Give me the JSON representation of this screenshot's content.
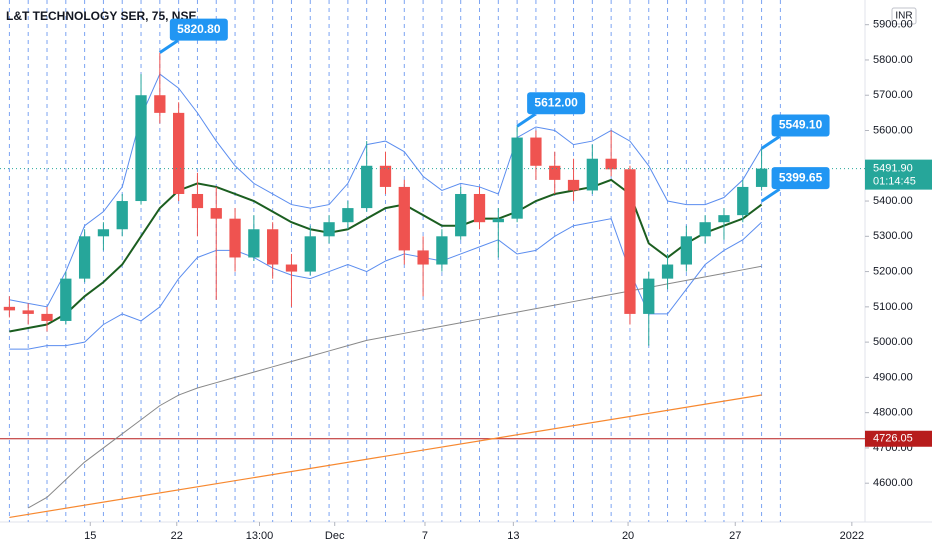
{
  "chart_data": {
    "type": "candlestick",
    "title": "L&T TECHNOLOGY SER, 75, NSE",
    "currency": "INR",
    "x": [
      0,
      1,
      2,
      3,
      4,
      5,
      6,
      7,
      8,
      9,
      10,
      11,
      12,
      13,
      14,
      15,
      16,
      17,
      18,
      19,
      20,
      21,
      22,
      23,
      24,
      25,
      26,
      27,
      28,
      29,
      30,
      31,
      32,
      33,
      34,
      35,
      36,
      37,
      38,
      39,
      40
    ],
    "open": [
      5100,
      5090,
      5080,
      5060,
      5180,
      5300,
      5320,
      5400,
      5700,
      5650,
      5420,
      5380,
      5350,
      5240,
      5320,
      5220,
      5200,
      5300,
      5340,
      5380,
      5500,
      5440,
      5260,
      5220,
      5300,
      5420,
      5340,
      5350,
      5580,
      5500,
      5460,
      5430,
      5520,
      5490,
      5080,
      5180,
      5220,
      5300,
      5340,
      5360,
      5440
    ],
    "high": [
      5130,
      5110,
      5100,
      5200,
      5320,
      5340,
      5420,
      5760,
      5820.8,
      5680,
      5480,
      5440,
      5380,
      5360,
      5340,
      5250,
      5330,
      5360,
      5400,
      5570,
      5540,
      5460,
      5300,
      5320,
      5440,
      5440,
      5380,
      5612,
      5600,
      5540,
      5520,
      5560,
      5600,
      5500,
      5200,
      5250,
      5330,
      5360,
      5380,
      5460,
      5549.1
    ],
    "low": [
      5070,
      5050,
      5030,
      5050,
      5170,
      5260,
      5300,
      5390,
      5620,
      5400,
      5300,
      5120,
      5200,
      5230,
      5180,
      5100,
      5190,
      5280,
      5320,
      5370,
      5420,
      5220,
      5130,
      5200,
      5290,
      5320,
      5240,
      5340,
      5460,
      5420,
      5400,
      5420,
      5470,
      5050,
      4990,
      5150,
      5200,
      5280,
      5290,
      5340,
      5430
    ],
    "close": [
      5090,
      5080,
      5060,
      5180,
      5300,
      5320,
      5400,
      5700,
      5650,
      5420,
      5380,
      5350,
      5240,
      5320,
      5220,
      5200,
      5300,
      5340,
      5380,
      5500,
      5440,
      5260,
      5220,
      5300,
      5420,
      5340,
      5350,
      5580,
      5500,
      5460,
      5430,
      5520,
      5490,
      5080,
      5180,
      5220,
      5300,
      5340,
      5360,
      5440,
      5491.9
    ],
    "up_color": "#26a69a",
    "down_color": "#ef5350",
    "xlim": [
      -0.5,
      45.5
    ],
    "xticks": [
      {
        "value": 4.3,
        "label": "15"
      },
      {
        "value": 8.9,
        "label": "22"
      },
      {
        "value": 13.3,
        "label": "13:00"
      },
      {
        "value": 17.3,
        "label": "Dec"
      },
      {
        "value": 22.1,
        "label": "7"
      },
      {
        "value": 26.8,
        "label": "13"
      },
      {
        "value": 32.9,
        "label": "20"
      },
      {
        "value": 38.6,
        "label": "27"
      },
      {
        "value": 44.8,
        "label": "2022"
      }
    ],
    "ylim": [
      4490,
      5970
    ],
    "yticks": [
      {
        "value": 4600,
        "label": "4600.00"
      },
      {
        "value": 4700,
        "label": "4700.00"
      },
      {
        "value": 4800,
        "label": "4800.00"
      },
      {
        "value": 4900,
        "label": "4900.00"
      },
      {
        "value": 5000,
        "label": "5000.00"
      },
      {
        "value": 5100,
        "label": "5100.00"
      },
      {
        "value": 5200,
        "label": "5200.00"
      },
      {
        "value": 5300,
        "label": "5300.00"
      },
      {
        "value": 5400,
        "label": "5400.00"
      },
      {
        "value": 5500,
        "label": "5500.00"
      },
      {
        "value": 5600,
        "label": "5600.00"
      },
      {
        "value": 5700,
        "label": "5700.00"
      },
      {
        "value": 5800,
        "label": "5800.00"
      },
      {
        "value": 5900,
        "label": "5900.00"
      }
    ],
    "lines": [
      {
        "color": "#1b5e20",
        "width": 2,
        "values": [
          5030,
          5040,
          5050,
          5080,
          5130,
          5170,
          5220,
          5300,
          5380,
          5430,
          5450,
          5440,
          5420,
          5400,
          5370,
          5340,
          5320,
          5310,
          5320,
          5350,
          5380,
          5390,
          5360,
          5330,
          5330,
          5350,
          5350,
          5370,
          5400,
          5420,
          5430,
          5440,
          5460,
          5420,
          5280,
          5240,
          5280,
          5310,
          5330,
          5350,
          5390
        ]
      },
      {
        "color": "#5b8def",
        "width": 1,
        "values": [
          5120,
          5110,
          5100,
          5200,
          5330,
          5370,
          5440,
          5640,
          5760,
          5720,
          5650,
          5570,
          5500,
          5450,
          5420,
          5390,
          5380,
          5390,
          5450,
          5560,
          5570,
          5540,
          5470,
          5430,
          5450,
          5440,
          5420,
          5580,
          5610,
          5600,
          5560,
          5570,
          5600,
          5570,
          5500,
          5400,
          5390,
          5390,
          5410,
          5460,
          5550
        ]
      },
      {
        "color": "#5b8def",
        "width": 1,
        "values": [
          4980,
          4980,
          4990,
          4990,
          5000,
          5050,
          5080,
          5060,
          5100,
          5180,
          5240,
          5260,
          5260,
          5240,
          5210,
          5190,
          5180,
          5200,
          5220,
          5200,
          5230,
          5250,
          5240,
          5230,
          5250,
          5270,
          5290,
          5250,
          5260,
          5300,
          5330,
          5340,
          5350,
          5200,
          5080,
          5080,
          5150,
          5220,
          5260,
          5290,
          5340
        ]
      },
      {
        "color": "#888888",
        "width": 1,
        "values": [
          null,
          4530,
          4560,
          4610,
          4660,
          4700,
          4740,
          4780,
          4820,
          4850,
          4870,
          4885,
          4900,
          4915,
          4930,
          4945,
          4960,
          4975,
          4990,
          5005,
          5015,
          5025,
          5035,
          5045,
          5055,
          5065,
          5075,
          5085,
          5095,
          5105,
          5115,
          5125,
          5135,
          5145,
          5155,
          5165,
          5175,
          5185,
          5195,
          5205,
          5215
        ]
      }
    ],
    "trend_line": {
      "color": "#f7882f",
      "x": [
        0,
        40
      ],
      "values": [
        4503,
        4850
      ]
    },
    "hline": {
      "value": 4726.05,
      "label": "4726.05",
      "color": "#b71c1c"
    },
    "last_price": {
      "value": 5491.9,
      "label": "5491.90",
      "countdown": "01:14:45",
      "color": "#26a69a"
    },
    "callouts": [
      {
        "x": 8,
        "value": 5820.8,
        "label": "5820.80"
      },
      {
        "x": 27,
        "value": 5612,
        "label": "5612.00"
      },
      {
        "x": 40,
        "value": 5549.1,
        "label": "5549.10"
      },
      {
        "x": 40,
        "value": 5399.65,
        "label": "5399.65"
      }
    ]
  }
}
